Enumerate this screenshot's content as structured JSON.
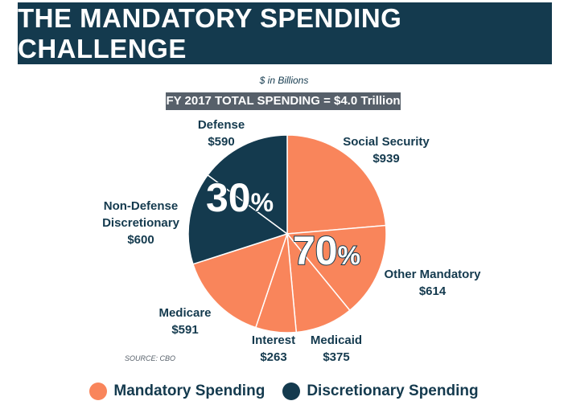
{
  "title": "THE MANDATORY SPENDING CHALLENGE",
  "chart_data": {
    "type": "pie",
    "subtitle": "$ in Billions",
    "total_label": "FY 2017 TOTAL SPENDING = $4.0 Trillion",
    "slices": [
      {
        "name": "Social Security",
        "value": 939,
        "label": "$939",
        "group": "mandatory"
      },
      {
        "name": "Other Mandatory",
        "value": 614,
        "label": "$614",
        "group": "mandatory"
      },
      {
        "name": "Medicaid",
        "value": 375,
        "label": "$375",
        "group": "mandatory"
      },
      {
        "name": "Interest",
        "value": 263,
        "label": "$263",
        "group": "mandatory"
      },
      {
        "name": "Medicare",
        "value": 591,
        "label": "$591",
        "group": "mandatory"
      },
      {
        "name": "Non-Defense Discretionary",
        "value": 600,
        "label": "$600",
        "group": "discretionary"
      },
      {
        "name": "Defense",
        "value": 590,
        "label": "$590",
        "group": "discretionary"
      }
    ],
    "group_percent": {
      "discretionary": {
        "num": "30",
        "sym": "%"
      },
      "mandatory": {
        "num": "70",
        "sym": "%"
      }
    },
    "legend": [
      {
        "label": "Mandatory Spending",
        "color": "#f9855b"
      },
      {
        "label": "Discretionary Spending",
        "color": "#143a4e"
      }
    ],
    "colors": {
      "mandatory": "#f9855b",
      "discretionary": "#143a4e"
    },
    "source": "SOURCE: CBO"
  },
  "labels": {
    "ss": [
      "Social Security",
      "$939"
    ],
    "om": [
      "Other Mandatory",
      "$614"
    ],
    "md": [
      "Medicaid",
      "$375"
    ],
    "in": [
      "Interest",
      "$263"
    ],
    "mc": [
      "Medicare",
      "$591"
    ],
    "nd": [
      "Non-Defense",
      "Discretionary",
      "$600"
    ],
    "df": [
      "Defense",
      "$590"
    ]
  }
}
